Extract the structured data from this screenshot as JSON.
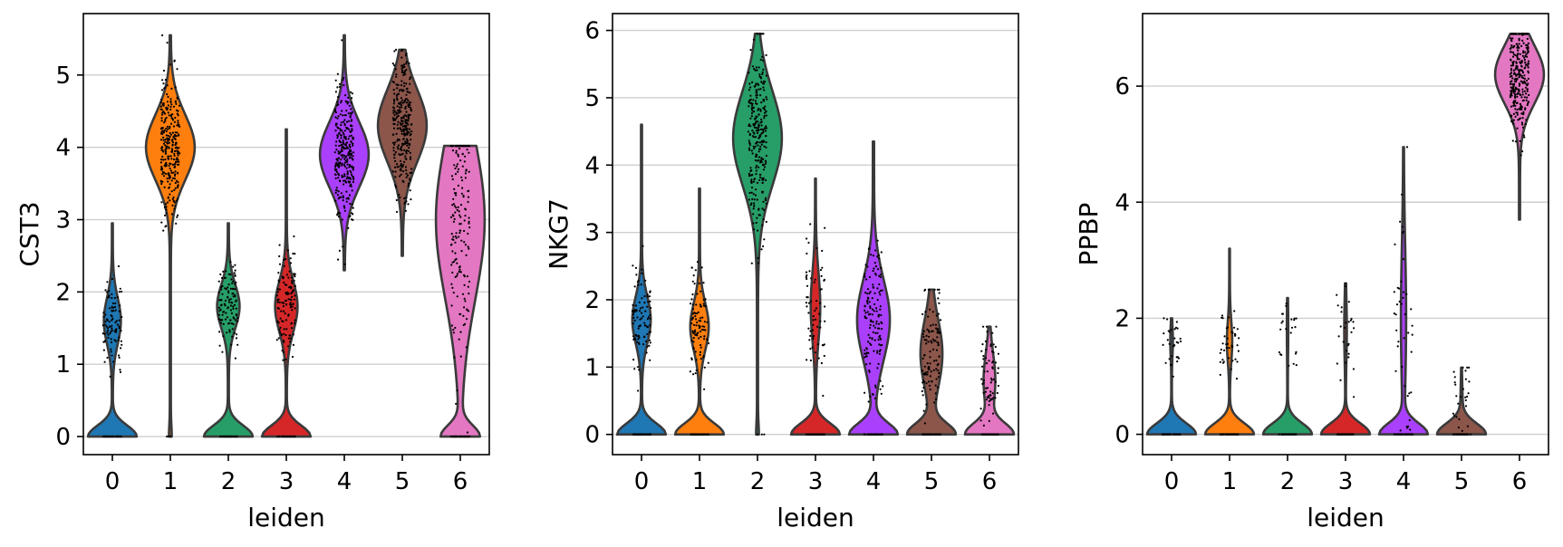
{
  "palette": [
    "#1f77b4",
    "#ff7f0e",
    "#279e68",
    "#d62728",
    "#aa40fc",
    "#8c564b",
    "#e377c2"
  ],
  "chart_data": [
    {
      "type": "violin",
      "xlabel": "leiden",
      "ylabel": "CST3",
      "categories": [
        "0",
        "1",
        "2",
        "3",
        "4",
        "5",
        "6"
      ],
      "ylim": [
        -0.25,
        5.85
      ],
      "yticks": [
        0,
        1,
        2,
        3,
        4,
        5
      ],
      "grid": "horizontal",
      "violins": [
        {
          "category": "0",
          "min": 0,
          "max": 2.95,
          "zero_fraction": 0.62,
          "cluster_center": 1.6,
          "cluster_spread": 0.32
        },
        {
          "category": "1",
          "min": 0,
          "max": 5.55,
          "zero_fraction": 0.02,
          "cluster_center": 4.0,
          "cluster_spread": 0.45
        },
        {
          "category": "2",
          "min": 0,
          "max": 2.95,
          "zero_fraction": 0.55,
          "cluster_center": 1.8,
          "cluster_spread": 0.3
        },
        {
          "category": "3",
          "min": 0,
          "max": 4.25,
          "zero_fraction": 0.55,
          "cluster_center": 1.8,
          "cluster_spread": 0.35
        },
        {
          "category": "4",
          "min": 2.3,
          "max": 5.55,
          "zero_fraction": 0.0,
          "cluster_center": 3.9,
          "cluster_spread": 0.45
        },
        {
          "category": "5",
          "min": 2.5,
          "max": 5.35,
          "zero_fraction": 0.0,
          "cluster_center": 4.3,
          "cluster_spread": 0.5
        },
        {
          "category": "6",
          "min": 0,
          "max": 4.02,
          "zero_fraction": 0.3,
          "cluster_center": 3.0,
          "cluster_spread": 1.1
        }
      ]
    },
    {
      "type": "violin",
      "xlabel": "leiden",
      "ylabel": "NKG7",
      "categories": [
        "0",
        "1",
        "2",
        "3",
        "4",
        "5",
        "6"
      ],
      "ylim": [
        -0.3,
        6.25
      ],
      "yticks": [
        0,
        1,
        2,
        3,
        4,
        5,
        6
      ],
      "grid": "horizontal",
      "violins": [
        {
          "category": "0",
          "min": 0,
          "max": 4.6,
          "zero_fraction": 0.6,
          "cluster_center": 1.7,
          "cluster_spread": 0.35
        },
        {
          "category": "1",
          "min": 0,
          "max": 3.65,
          "zero_fraction": 0.6,
          "cluster_center": 1.6,
          "cluster_spread": 0.35
        },
        {
          "category": "2",
          "min": 0,
          "max": 5.95,
          "zero_fraction": 0.02,
          "cluster_center": 4.4,
          "cluster_spread": 0.7
        },
        {
          "category": "3",
          "min": 0,
          "max": 3.8,
          "zero_fraction": 0.75,
          "cluster_center": 1.9,
          "cluster_spread": 0.5
        },
        {
          "category": "4",
          "min": 0,
          "max": 4.35,
          "zero_fraction": 0.45,
          "cluster_center": 1.7,
          "cluster_spread": 0.6
        },
        {
          "category": "5",
          "min": 0,
          "max": 2.15,
          "zero_fraction": 0.55,
          "cluster_center": 1.2,
          "cluster_spread": 0.5
        },
        {
          "category": "6",
          "min": 0,
          "max": 1.6,
          "zero_fraction": 0.7,
          "cluster_center": 0.8,
          "cluster_spread": 0.4
        }
      ]
    },
    {
      "type": "violin",
      "xlabel": "leiden",
      "ylabel": "PPBP",
      "categories": [
        "0",
        "1",
        "2",
        "3",
        "4",
        "5",
        "6"
      ],
      "ylim": [
        -0.35,
        7.25
      ],
      "yticks": [
        0,
        2,
        4,
        6
      ],
      "grid": "horizontal",
      "violins": [
        {
          "category": "0",
          "min": 0,
          "max": 2.0,
          "zero_fraction": 0.93,
          "cluster_center": 1.6,
          "cluster_spread": 0.25
        },
        {
          "category": "1",
          "min": 0,
          "max": 3.2,
          "zero_fraction": 0.85,
          "cluster_center": 1.6,
          "cluster_spread": 0.35
        },
        {
          "category": "2",
          "min": 0,
          "max": 2.35,
          "zero_fraction": 0.97,
          "cluster_center": 1.8,
          "cluster_spread": 0.4
        },
        {
          "category": "3",
          "min": 0,
          "max": 2.6,
          "zero_fraction": 0.93,
          "cluster_center": 1.8,
          "cluster_spread": 0.5
        },
        {
          "category": "4",
          "min": 0,
          "max": 4.95,
          "zero_fraction": 0.85,
          "cluster_center": 2.0,
          "cluster_spread": 1.2
        },
        {
          "category": "5",
          "min": 0,
          "max": 1.15,
          "zero_fraction": 0.95,
          "cluster_center": 0.6,
          "cluster_spread": 0.3
        },
        {
          "category": "6",
          "min": 3.7,
          "max": 6.9,
          "zero_fraction": 0.0,
          "cluster_center": 6.2,
          "cluster_spread": 0.5
        }
      ]
    }
  ]
}
